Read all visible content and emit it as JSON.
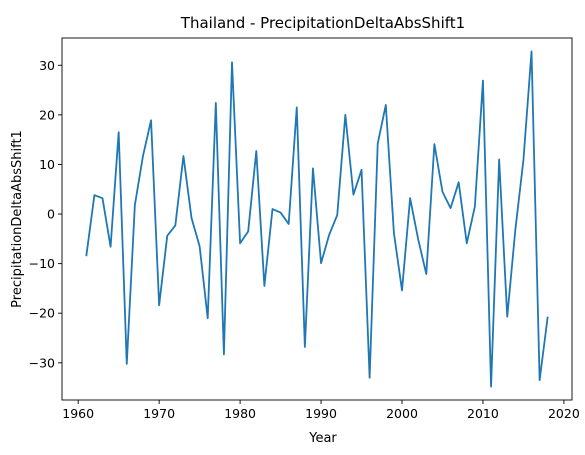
{
  "chart_data": {
    "type": "line",
    "title": "Thailand - PrecipitationDeltaAbsShift1",
    "xlabel": "Year",
    "ylabel": "PrecipitationDeltaAbsShift1",
    "xlim": [
      1958,
      2021
    ],
    "ylim": [
      -37.5,
      35.5
    ],
    "xticks": [
      1960,
      1970,
      1980,
      1990,
      2000,
      2010,
      2020
    ],
    "yticks": [
      -30,
      -20,
      -10,
      0,
      10,
      20,
      30
    ],
    "grid": false,
    "line_color": "#1f77b4",
    "series": [
      {
        "x": [
          1961,
          1962,
          1963,
          1964,
          1965,
          1966,
          1967,
          1968,
          1969,
          1970,
          1971,
          1972,
          1973,
          1974,
          1975,
          1976,
          1977,
          1978,
          1979,
          1980,
          1981,
          1982,
          1983,
          1984,
          1985,
          1986,
          1987,
          1988,
          1989,
          1990,
          1991,
          1992,
          1993,
          1994,
          1995,
          1996,
          1997,
          1998,
          1999,
          2000,
          2001,
          2002,
          2003,
          2004,
          2005,
          2006,
          2007,
          2008,
          2009,
          2010,
          2011,
          2012,
          2013,
          2014,
          2015,
          2016,
          2017,
          2018
        ],
        "values": [
          -8.5,
          3.8,
          3.2,
          -6.6,
          16.5,
          -30.2,
          1.8,
          11.7,
          18.9,
          -18.4,
          -4.4,
          -2.3,
          11.7,
          -0.8,
          -6.5,
          -21.0,
          22.4,
          -28.3,
          30.6,
          -5.9,
          -3.5,
          12.7,
          -14.5,
          1.0,
          0.3,
          -2.0,
          21.5,
          -26.8,
          9.2,
          -9.9,
          -4.2,
          -0.2,
          20.0,
          3.9,
          8.9,
          -33.0,
          14.2,
          22.0,
          -3.8,
          -15.4,
          3.2,
          -5.1,
          -12.1,
          14.1,
          4.5,
          1.2,
          6.4,
          -5.9,
          1.5,
          26.9,
          -34.8,
          11.0,
          -20.7,
          -3.2,
          10.9,
          32.8,
          -33.5,
          -20.7
        ]
      }
    ]
  }
}
